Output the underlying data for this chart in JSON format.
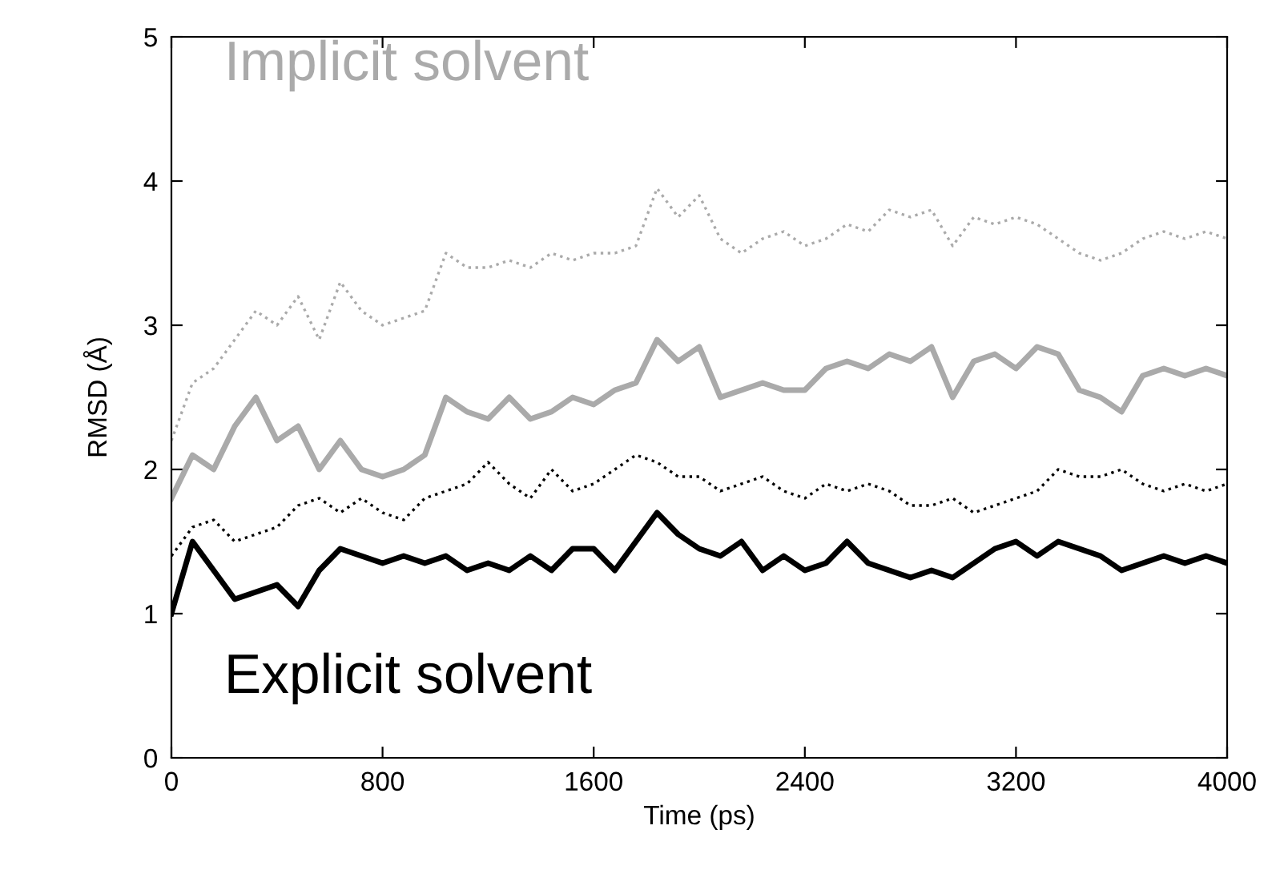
{
  "chart_data": {
    "type": "line",
    "xlabel": "Time (ps)",
    "ylabel": "RMSD (Å)",
    "x": [
      0,
      80,
      160,
      240,
      320,
      400,
      480,
      560,
      640,
      720,
      800,
      880,
      960,
      1040,
      1120,
      1200,
      1280,
      1360,
      1440,
      1520,
      1600,
      1680,
      1760,
      1840,
      1920,
      2000,
      2080,
      2160,
      2240,
      2320,
      2400,
      2480,
      2560,
      2640,
      2720,
      2800,
      2880,
      2960,
      3040,
      3120,
      3200,
      3280,
      3360,
      3440,
      3520,
      3600,
      3680,
      3760,
      3840,
      3920,
      4000
    ],
    "series": [
      {
        "color": "#aaaaaa",
        "line_style": "dotted",
        "values": [
          2.2,
          2.6,
          2.7,
          2.9,
          3.1,
          3.0,
          3.2,
          2.9,
          3.3,
          3.1,
          3.0,
          3.05,
          3.1,
          3.5,
          3.4,
          3.4,
          3.45,
          3.4,
          3.5,
          3.45,
          3.5,
          3.5,
          3.55,
          3.95,
          3.75,
          3.9,
          3.6,
          3.5,
          3.6,
          3.65,
          3.55,
          3.6,
          3.7,
          3.65,
          3.8,
          3.75,
          3.8,
          3.55,
          3.75,
          3.7,
          3.75,
          3.7,
          3.6,
          3.5,
          3.45,
          3.5,
          3.6,
          3.65,
          3.6,
          3.65,
          3.6
        ]
      },
      {
        "color": "#aaaaaa",
        "line_style": "solid",
        "values": [
          1.8,
          2.1,
          2.0,
          2.3,
          2.5,
          2.2,
          2.3,
          2.0,
          2.2,
          2.0,
          1.95,
          2.0,
          2.1,
          2.5,
          2.4,
          2.35,
          2.5,
          2.35,
          2.4,
          2.5,
          2.45,
          2.55,
          2.6,
          2.9,
          2.75,
          2.85,
          2.5,
          2.55,
          2.6,
          2.55,
          2.55,
          2.7,
          2.75,
          2.7,
          2.8,
          2.75,
          2.85,
          2.5,
          2.75,
          2.8,
          2.7,
          2.85,
          2.8,
          2.55,
          2.5,
          2.4,
          2.65,
          2.7,
          2.65,
          2.7,
          2.65
        ]
      },
      {
        "color": "#000000",
        "line_style": "dotted",
        "values": [
          1.4,
          1.6,
          1.65,
          1.5,
          1.55,
          1.6,
          1.75,
          1.8,
          1.7,
          1.8,
          1.7,
          1.65,
          1.8,
          1.85,
          1.9,
          2.05,
          1.9,
          1.8,
          2.0,
          1.85,
          1.9,
          2.0,
          2.1,
          2.05,
          1.95,
          1.95,
          1.85,
          1.9,
          1.95,
          1.85,
          1.8,
          1.9,
          1.85,
          1.9,
          1.85,
          1.75,
          1.75,
          1.8,
          1.7,
          1.75,
          1.8,
          1.85,
          2.0,
          1.95,
          1.95,
          2.0,
          1.9,
          1.85,
          1.9,
          1.85,
          1.9
        ]
      },
      {
        "color": "#000000",
        "line_style": "solid",
        "values": [
          1.0,
          1.5,
          1.3,
          1.1,
          1.15,
          1.2,
          1.05,
          1.3,
          1.45,
          1.4,
          1.35,
          1.4,
          1.35,
          1.4,
          1.3,
          1.35,
          1.3,
          1.4,
          1.3,
          1.45,
          1.45,
          1.3,
          1.5,
          1.7,
          1.55,
          1.45,
          1.4,
          1.5,
          1.3,
          1.4,
          1.3,
          1.35,
          1.5,
          1.35,
          1.3,
          1.25,
          1.3,
          1.25,
          1.35,
          1.45,
          1.5,
          1.4,
          1.5,
          1.45,
          1.4,
          1.3,
          1.35,
          1.4,
          1.35,
          1.4,
          1.35
        ]
      }
    ],
    "annotations": [
      "Implicit solvent",
      "Explicit solvent"
    ],
    "xlim": [
      0,
      4000
    ],
    "xticks": [
      0,
      800,
      1600,
      2400,
      3200,
      4000
    ],
    "ylim": [
      0,
      5
    ],
    "yticks": [
      0,
      1,
      2,
      3,
      4,
      5
    ]
  }
}
